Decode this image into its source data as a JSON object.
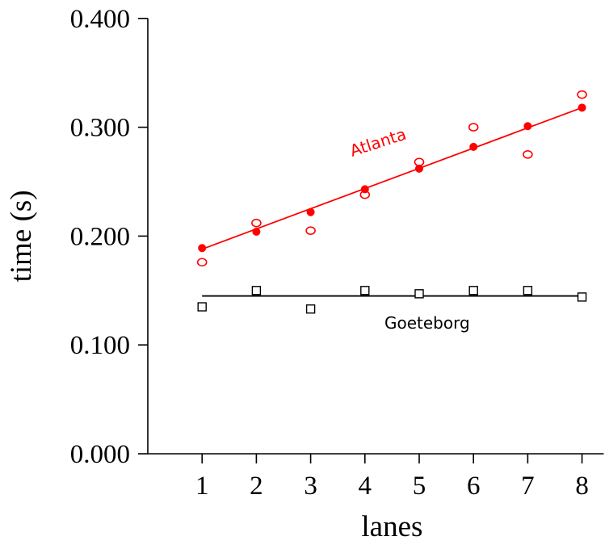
{
  "chart_data": {
    "type": "scatter",
    "xlabel": "lanes",
    "ylabel": "time (s)",
    "xlim": [
      0,
      8.4
    ],
    "ylim": [
      0,
      0.4
    ],
    "x_ticks": [
      1,
      2,
      3,
      4,
      5,
      6,
      7,
      8
    ],
    "y_ticks": [
      "0.000",
      "0.100",
      "0.200",
      "0.300",
      "0.400"
    ],
    "y_tick_values": [
      0,
      0.1,
      0.2,
      0.3,
      0.4
    ],
    "grid": false,
    "series": [
      {
        "name": "Atlanta",
        "color": "#ff0000",
        "fit_points": [
          {
            "x": 1,
            "y": 0.189
          },
          {
            "x": 2,
            "y": 0.204
          },
          {
            "x": 3,
            "y": 0.222
          },
          {
            "x": 4,
            "y": 0.243
          },
          {
            "x": 5,
            "y": 0.262
          },
          {
            "x": 6,
            "y": 0.282
          },
          {
            "x": 7,
            "y": 0.301
          },
          {
            "x": 8,
            "y": 0.318
          }
        ],
        "measured_points": [
          {
            "x": 1,
            "y": 0.176
          },
          {
            "x": 2,
            "y": 0.212
          },
          {
            "x": 3,
            "y": 0.205
          },
          {
            "x": 4,
            "y": 0.238
          },
          {
            "x": 5,
            "y": 0.268
          },
          {
            "x": 6,
            "y": 0.3
          },
          {
            "x": 7,
            "y": 0.275
          },
          {
            "x": 8,
            "y": 0.33
          }
        ],
        "fit_line": {
          "x": [
            1,
            8
          ],
          "y": [
            0.188,
            0.318
          ]
        }
      },
      {
        "name": "Goeteborg",
        "color": "#000000",
        "measured_points": [
          {
            "x": 1,
            "y": 0.135
          },
          {
            "x": 2,
            "y": 0.15
          },
          {
            "x": 3,
            "y": 0.133
          },
          {
            "x": 4,
            "y": 0.15
          },
          {
            "x": 5,
            "y": 0.147
          },
          {
            "x": 6,
            "y": 0.15
          },
          {
            "x": 7,
            "y": 0.15
          },
          {
            "x": 8,
            "y": 0.144
          }
        ],
        "fit_line": {
          "x": [
            1,
            8
          ],
          "y": [
            0.145,
            0.145
          ]
        }
      }
    ]
  }
}
